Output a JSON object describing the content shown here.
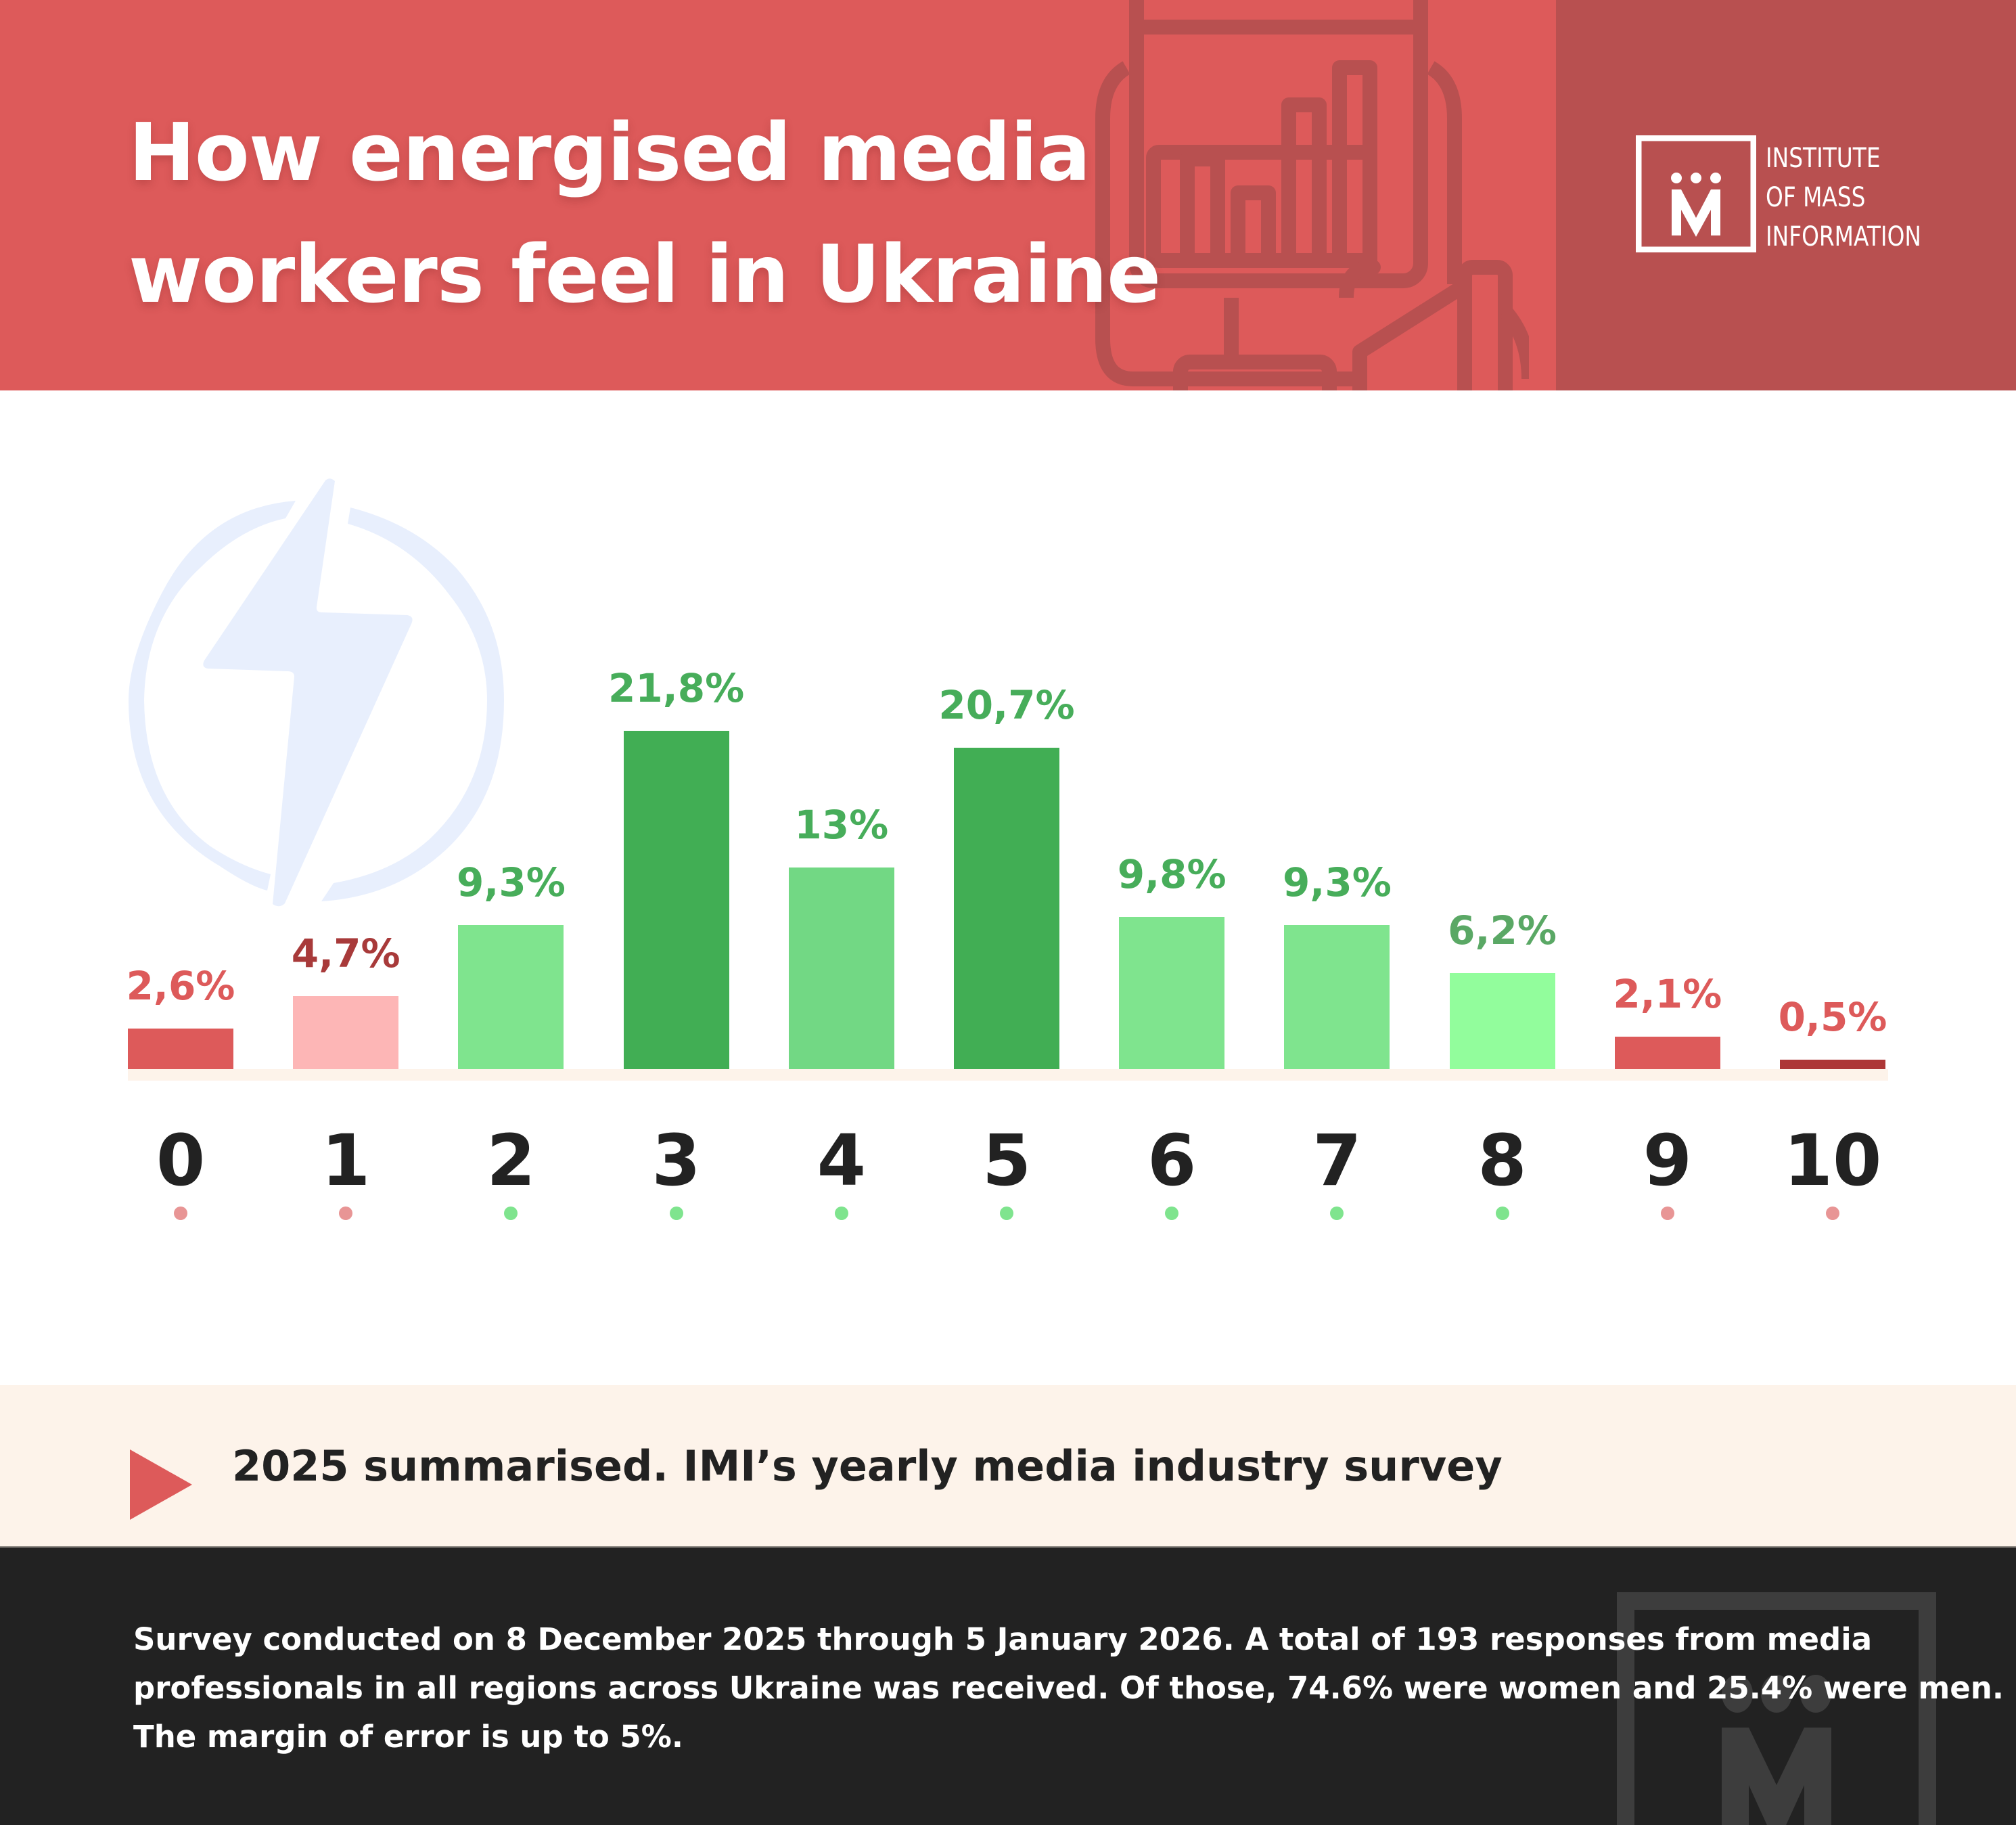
{
  "header": {
    "title_line1": "How energised media",
    "title_line2": "workers feel in Ukraine",
    "logo": {
      "line1": "INSTITUTE",
      "line2": "OF MASS",
      "line3": "INFORMATION"
    }
  },
  "colors": {
    "header_bg": "#dd5a5a",
    "header_panel": "#b85050",
    "red": "#dd5a5a",
    "dark_red": "#ad3636",
    "pink": "#fdb6b6",
    "green_dark": "#41ae54",
    "green_mid": "#72d884",
    "green_light": "#7fe48e",
    "green_pale": "#92fd9c",
    "label_red": "#dd5a5a",
    "label_dark_red": "#a83a3a",
    "label_green": "#47ad5a",
    "dot_red": "#e89595",
    "dot_green": "#7fe48e",
    "cream": "#fdf3ea",
    "footer_bg": "#222222"
  },
  "chart_data": {
    "type": "bar",
    "title": "How energised media workers feel in Ukraine",
    "xlabel": "",
    "ylabel": "",
    "ylim": [
      0,
      25
    ],
    "grid": false,
    "categories": [
      "0",
      "1",
      "2",
      "3",
      "4",
      "5",
      "6",
      "7",
      "8",
      "9",
      "10"
    ],
    "values": [
      2.6,
      4.7,
      9.3,
      21.8,
      13,
      20.7,
      9.8,
      9.3,
      6.2,
      2.1,
      0.5
    ],
    "value_labels": [
      "2,6%",
      "4,7%",
      "9,3%",
      "21,8%",
      "13%",
      "20,7%",
      "9,8%",
      "9,3%",
      "6,2%",
      "2,1%",
      "0,5%"
    ],
    "bar_colors": [
      "#dd5a5a",
      "#fdb6b6",
      "#7fe48e",
      "#41ae54",
      "#72d884",
      "#41ae54",
      "#7fe48e",
      "#7fe48e",
      "#92fd9c",
      "#dd5a5a",
      "#ad3636"
    ],
    "label_colors": [
      "#dd5a5a",
      "#a83a3a",
      "#47ad5a",
      "#47ad5a",
      "#47ad5a",
      "#47ad5a",
      "#47ad5a",
      "#47ad5a",
      "#5aa865",
      "#dd5a5a",
      "#dd5a5a"
    ],
    "dot_colors": [
      "#e89595",
      "#e89595",
      "#7fe48e",
      "#7fe48e",
      "#7fe48e",
      "#7fe48e",
      "#7fe48e",
      "#7fe48e",
      "#7fe48e",
      "#e89595",
      "#e89595"
    ]
  },
  "banner": {
    "text": "2025 summarised. IMI’s yearly media industry survey"
  },
  "footer": {
    "line1": "Survey conducted on 8 December 2025 through 5 January 2026. A total of 193 responses from media",
    "line2": "professionals in all regions across Ukraine was received. Of those, 74.6% were women and 25.4% were men.",
    "line3": "The margin of error is up to 5%."
  }
}
